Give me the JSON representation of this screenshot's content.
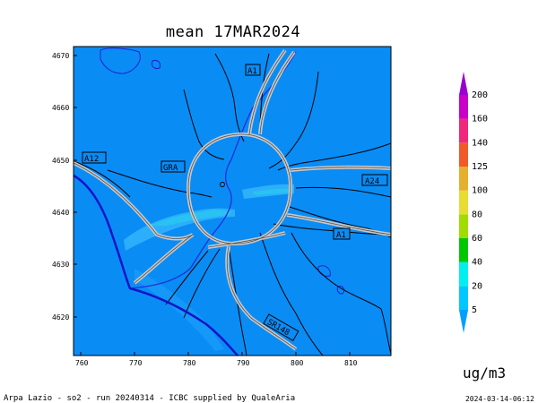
{
  "title": "mean 17MAR2024",
  "units": "ug/m3",
  "footer": {
    "credit": "Arpa Lazio - so2 - run 20240314 - ICBC supplied by QualeAria",
    "timestamp": "2024-03-14-06:12"
  },
  "axes": {
    "x_ticks": [
      "760",
      "770",
      "780",
      "790",
      "800",
      "810"
    ],
    "y_ticks": [
      "4670",
      "4660",
      "4650",
      "4640",
      "4630",
      "4620"
    ]
  },
  "road_labels": [
    "A1",
    "A12",
    "GRA",
    "A24",
    "A1",
    "SR148"
  ],
  "colorbar": {
    "levels": [
      "5",
      "20",
      "40",
      "60",
      "80",
      "100",
      "125",
      "140",
      "160",
      "200"
    ],
    "colors": [
      "#00a0ff",
      "#00c8ff",
      "#00f0f0",
      "#00c800",
      "#a0dc00",
      "#e6dc32",
      "#e6af2d",
      "#f05a28",
      "#f0287a",
      "#c800c8",
      "#9a00d0"
    ]
  },
  "colors": {
    "map_background": "#0a8cf5",
    "plume": "#32b4fa",
    "plume_core": "#28c8f0",
    "coastline": "#1414c8",
    "road": "#c8c8c8",
    "boundary": "#000000"
  }
}
